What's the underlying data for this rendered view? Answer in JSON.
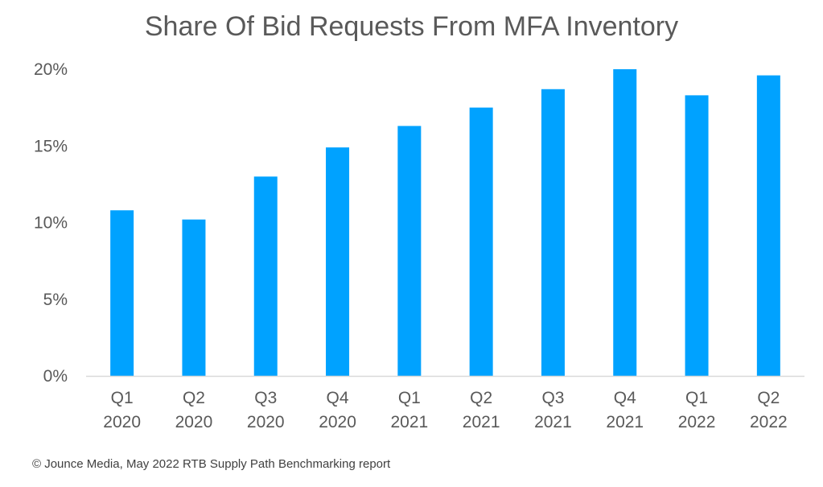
{
  "chart_data": {
    "type": "bar",
    "title": "Share Of Bid Requests From MFA Inventory",
    "categories": [
      [
        "Q1",
        "2020"
      ],
      [
        "Q2",
        "2020"
      ],
      [
        "Q3",
        "2020"
      ],
      [
        "Q4",
        "2020"
      ],
      [
        "Q1",
        "2021"
      ],
      [
        "Q2",
        "2021"
      ],
      [
        "Q3",
        "2021"
      ],
      [
        "Q4",
        "2021"
      ],
      [
        "Q1",
        "2022"
      ],
      [
        "Q2",
        "2022"
      ]
    ],
    "values": [
      10.8,
      10.2,
      13.0,
      14.9,
      16.3,
      17.5,
      18.7,
      20.0,
      18.3,
      19.6
    ],
    "ylim": [
      0,
      20
    ],
    "yticks": [
      "0%",
      "5%",
      "10%",
      "15%",
      "20%"
    ],
    "ytick_values": [
      0,
      5,
      10,
      15,
      20
    ],
    "xlabel": "",
    "ylabel": "",
    "grid": false,
    "bar_color": "#00a2ff",
    "axis_color": "#d9d9d9"
  },
  "source": "© Jounce Media, May 2022 RTB Supply Path Benchmarking report"
}
